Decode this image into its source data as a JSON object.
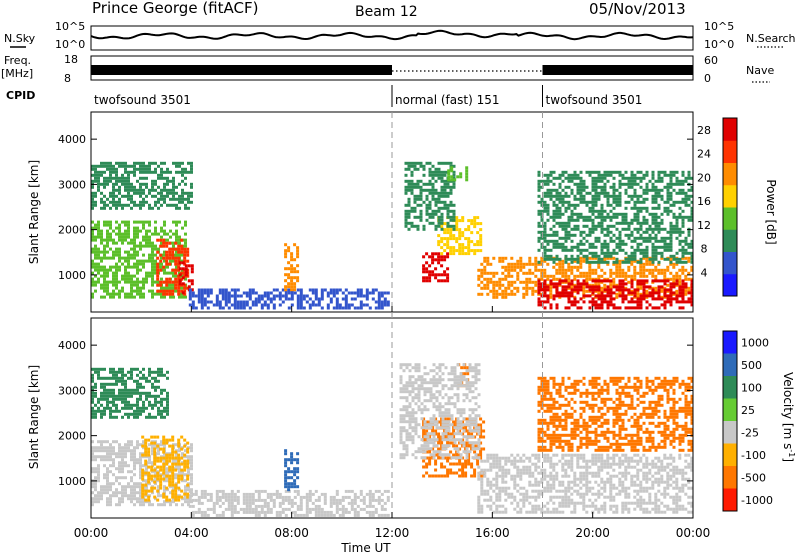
{
  "header": {
    "station": "Prince George (fitACF)",
    "beam": "Beam 12",
    "date": "05/Nov/2013"
  },
  "noise_panel": {
    "left_label": "N.Sky",
    "right_label": "N.Search",
    "left_ticks": [
      "10^5",
      "10^0"
    ],
    "right_ticks": [
      "10^5",
      "10^0"
    ]
  },
  "freq_panel": {
    "left_label": "Freq.",
    "left_unit": "[MHz]",
    "left_ticks": [
      "18",
      "8"
    ],
    "right_label": "Nave",
    "right_ticks": [
      "60",
      "0"
    ]
  },
  "cpid": {
    "label": "CPID",
    "segments": [
      {
        "name": "twofsound 3501",
        "start": "00:00",
        "end": "12:00"
      },
      {
        "name": "normal (fast) 151",
        "start": "12:00",
        "end": "18:00"
      },
      {
        "name": "twofsound 3501",
        "start": "18:00",
        "end": "24:00"
      }
    ]
  },
  "chart_data": [
    {
      "type": "heatmap",
      "panel": "power",
      "ylabel": "Slant Range [km]",
      "xlabel": "",
      "yticks": [
        1000,
        2000,
        3000,
        4000
      ],
      "ylim": [
        180,
        4600
      ],
      "xlim_hours": [
        0,
        24
      ],
      "colorbar": {
        "label": "Power [dB]",
        "ticks": [
          4,
          8,
          12,
          16,
          20,
          24,
          28
        ],
        "range": [
          0,
          30
        ],
        "colors": [
          "#1a1aff",
          "#3355cc",
          "#2e8b57",
          "#5cbf2a",
          "#ffd000",
          "#ff8c00",
          "#ff3300",
          "#e00000"
        ]
      },
      "regions": [
        {
          "start_h": 0.0,
          "end_h": 3.8,
          "range_km": [
            500,
            2200
          ],
          "level": 12
        },
        {
          "start_h": 2.6,
          "end_h": 3.9,
          "range_km": [
            600,
            1800
          ],
          "level": 24
        },
        {
          "start_h": 3.5,
          "end_h": 4.0,
          "range_km": [
            600,
            1300
          ],
          "level": 28
        },
        {
          "start_h": 0.0,
          "end_h": 4.0,
          "range_km": [
            2500,
            3500
          ],
          "level": 8
        },
        {
          "start_h": 3.9,
          "end_h": 11.9,
          "range_km": [
            250,
            700
          ],
          "level": 6
        },
        {
          "start_h": 7.7,
          "end_h": 8.2,
          "range_km": [
            700,
            1700
          ],
          "level": 20
        },
        {
          "start_h": 13.2,
          "end_h": 14.2,
          "range_km": [
            900,
            1500
          ],
          "level": 29
        },
        {
          "start_h": 13.8,
          "end_h": 15.5,
          "range_km": [
            1500,
            2300
          ],
          "level": 18
        },
        {
          "start_h": 12.5,
          "end_h": 14.5,
          "range_km": [
            2000,
            3500
          ],
          "level": 8
        },
        {
          "start_h": 14.2,
          "end_h": 15.0,
          "range_km": [
            3100,
            3400
          ],
          "level": 12
        },
        {
          "start_h": 15.4,
          "end_h": 24.0,
          "range_km": [
            500,
            1400
          ],
          "level": 20
        },
        {
          "start_h": 17.8,
          "end_h": 24.0,
          "range_km": [
            300,
            900
          ],
          "level": 29
        },
        {
          "start_h": 17.8,
          "end_h": 24.0,
          "range_km": [
            1300,
            3300
          ],
          "level": 10
        }
      ]
    },
    {
      "type": "heatmap",
      "panel": "velocity",
      "ylabel": "Slant Range [km]",
      "xlabel": "Time UT",
      "yticks": [
        1000,
        2000,
        3000,
        4000
      ],
      "ylim": [
        180,
        4600
      ],
      "xticks": [
        "00:00",
        "04:00",
        "08:00",
        "12:00",
        "16:00",
        "20:00",
        "00:00"
      ],
      "xlim_hours": [
        0,
        24
      ],
      "colorbar": {
        "label": "Velocity [m s^-1]",
        "ticks": [
          "1000",
          "500",
          "100",
          "25",
          "-25",
          "-100",
          "-500",
          "-1000"
        ],
        "colors": [
          "#1a1aff",
          "#2e6bb8",
          "#2e8b57",
          "#66cc33",
          "#c8c8c8",
          "#ffb000",
          "#ff7700",
          "#ff1a00"
        ]
      },
      "regions": [
        {
          "start_h": 0.0,
          "end_h": 4.0,
          "range_km": [
            500,
            1900
          ],
          "level": "-25"
        },
        {
          "start_h": 2.0,
          "end_h": 3.9,
          "range_km": [
            600,
            2000
          ],
          "level": "-100"
        },
        {
          "start_h": 0.0,
          "end_h": 3.0,
          "range_km": [
            2400,
            3500
          ],
          "level": "100"
        },
        {
          "start_h": 3.9,
          "end_h": 11.9,
          "range_km": [
            250,
            800
          ],
          "level": "-25"
        },
        {
          "start_h": 7.7,
          "end_h": 8.2,
          "range_km": [
            800,
            1700
          ],
          "level": "500"
        },
        {
          "start_h": 13.2,
          "end_h": 15.6,
          "range_km": [
            1100,
            2400
          ],
          "level": "-500"
        },
        {
          "start_h": 14.6,
          "end_h": 15.0,
          "range_km": [
            3100,
            3600
          ],
          "level": "-500"
        },
        {
          "start_h": 12.3,
          "end_h": 15.5,
          "range_km": [
            1500,
            3600
          ],
          "level": "-25"
        },
        {
          "start_h": 15.4,
          "end_h": 24.0,
          "range_km": [
            300,
            1600
          ],
          "level": "-25"
        },
        {
          "start_h": 17.8,
          "end_h": 24.0,
          "range_km": [
            1700,
            3300
          ],
          "level": "-500"
        }
      ]
    }
  ]
}
